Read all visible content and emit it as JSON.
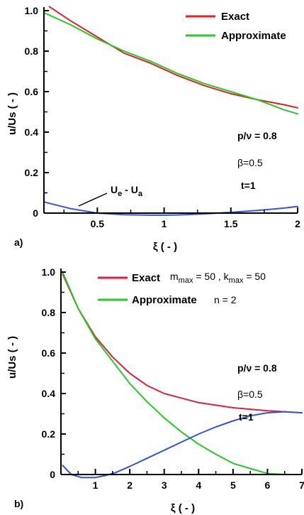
{
  "chart_data": [
    {
      "type": "line",
      "panel_label": "a)",
      "xlabel": "ξ ( - )",
      "ylabel": "u/Us ( - )",
      "xlim": [
        0.1,
        2.0
      ],
      "ylim": [
        0,
        1.0
      ],
      "x_ticks": [
        {
          "value": 0.5,
          "label": "0.5"
        },
        {
          "value": 1,
          "label": "1"
        },
        {
          "value": 1.5,
          "label": "1.5"
        },
        {
          "value": 2,
          "label": "2"
        }
      ],
      "y_ticks": [
        {
          "value": 0,
          "label": "0"
        },
        {
          "value": 0.2,
          "label": "0.2"
        },
        {
          "value": 0.4,
          "label": "0.4"
        },
        {
          "value": 0.6,
          "label": "0.6"
        },
        {
          "value": 0.8,
          "label": "0.8"
        },
        {
          "value": 1.0,
          "label": "1.0"
        }
      ],
      "legend": {
        "placement": "top-right"
      },
      "series": [
        {
          "name": "Exact",
          "color": "#e0202a",
          "in_legend": true,
          "x": [
            0.14,
            0.3,
            0.5,
            0.7,
            0.9,
            1.1,
            1.3,
            1.5,
            1.7,
            1.9,
            2.0
          ],
          "y": [
            1.02,
            0.95,
            0.87,
            0.79,
            0.74,
            0.68,
            0.63,
            0.59,
            0.56,
            0.535,
            0.52
          ]
        },
        {
          "name": "Approximate",
          "color": "#22cc22",
          "in_legend": true,
          "x": [
            0.1,
            0.3,
            0.5,
            0.7,
            0.9,
            1.1,
            1.3,
            1.5,
            1.7,
            1.9,
            2.0
          ],
          "y": [
            0.99,
            0.93,
            0.86,
            0.8,
            0.75,
            0.69,
            0.64,
            0.6,
            0.56,
            0.51,
            0.49
          ]
        },
        {
          "name": "Ue - Ua",
          "color": "#3355dd",
          "in_legend": false,
          "x": [
            0.1,
            0.3,
            0.5,
            0.7,
            0.9,
            1.0,
            1.1,
            1.3,
            1.4,
            1.5,
            1.7,
            1.9,
            2.0
          ],
          "y": [
            0.055,
            0.022,
            0.0,
            -0.008,
            -0.01,
            -0.01,
            -0.009,
            -0.004,
            0.0,
            0.004,
            0.013,
            0.025,
            0.033
          ]
        }
      ],
      "annotations": {
        "curve_label_main": "U",
        "curve_label_sub1": "e",
        "curve_label_mid": " - U",
        "curve_label_sub2": "a",
        "params": [
          "p/ν = 0.8",
          "β=0.5",
          "t=1"
        ]
      }
    },
    {
      "type": "line",
      "panel_label": "b)",
      "xlabel": "ξ ( - )",
      "ylabel": "u/Us ( - )",
      "xlim": [
        0,
        7
      ],
      "ylim": [
        0,
        1.0
      ],
      "x_ticks": [
        {
          "value": 1,
          "label": "1"
        },
        {
          "value": 2,
          "label": "2"
        },
        {
          "value": 3,
          "label": "3"
        },
        {
          "value": 4,
          "label": "4"
        },
        {
          "value": 5,
          "label": "5"
        },
        {
          "value": 6,
          "label": "6"
        },
        {
          "value": 7,
          "label": "7"
        }
      ],
      "y_ticks": [
        {
          "value": 0,
          "label": "0"
        },
        {
          "value": 0.2,
          "label": "0.2"
        },
        {
          "value": 0.4,
          "label": "0.4"
        },
        {
          "value": 0.6,
          "label": "0.6"
        },
        {
          "value": 0.8,
          "label": "0.8"
        },
        {
          "value": 1.0,
          "label": "1.0"
        }
      ],
      "legend": {
        "placement": "top-right"
      },
      "series": [
        {
          "name": "Exact",
          "color": "#e0203a",
          "in_legend": true,
          "x": [
            0.05,
            0.5,
            1,
            1.5,
            2,
            2.5,
            3,
            4,
            5,
            6,
            6.5,
            7
          ],
          "y": [
            0.99,
            0.82,
            0.68,
            0.58,
            0.5,
            0.44,
            0.4,
            0.355,
            0.33,
            0.315,
            0.31,
            0.305
          ]
        },
        {
          "name": "Approximate",
          "color": "#22cc22",
          "in_legend": true,
          "x": [
            0.05,
            0.5,
            1,
            1.5,
            2,
            2.5,
            3,
            3.5,
            4,
            4.5,
            5,
            5.5,
            6,
            6.5
          ],
          "y": [
            1.0,
            0.82,
            0.67,
            0.56,
            0.45,
            0.36,
            0.28,
            0.21,
            0.15,
            0.1,
            0.055,
            0.03,
            0.005,
            0.0
          ]
        },
        {
          "name": "Ue - Ua",
          "color": "#3355dd",
          "in_legend": false,
          "x": [
            0.05,
            0.3,
            0.6,
            1,
            1.3,
            1.6,
            2,
            2.5,
            3,
            3.5,
            4,
            4.5,
            5,
            5.5,
            6,
            6.5,
            7
          ],
          "y": [
            0.045,
            0.0,
            -0.015,
            -0.015,
            -0.005,
            0.01,
            0.04,
            0.08,
            0.12,
            0.16,
            0.2,
            0.235,
            0.265,
            0.29,
            0.305,
            0.31,
            0.305
          ]
        }
      ],
      "annotations": {
        "legend_extra_1": "m",
        "legend_extra_1_sub": "max",
        "legend_extra_1_val": " = 50 ,  k",
        "legend_extra_1_sub2": "max",
        "legend_extra_1_val2": " =  50",
        "legend_extra_2": "n = 2",
        "params": [
          "p/ν = 0.8",
          "β=0.5",
          "t=1"
        ]
      }
    }
  ]
}
